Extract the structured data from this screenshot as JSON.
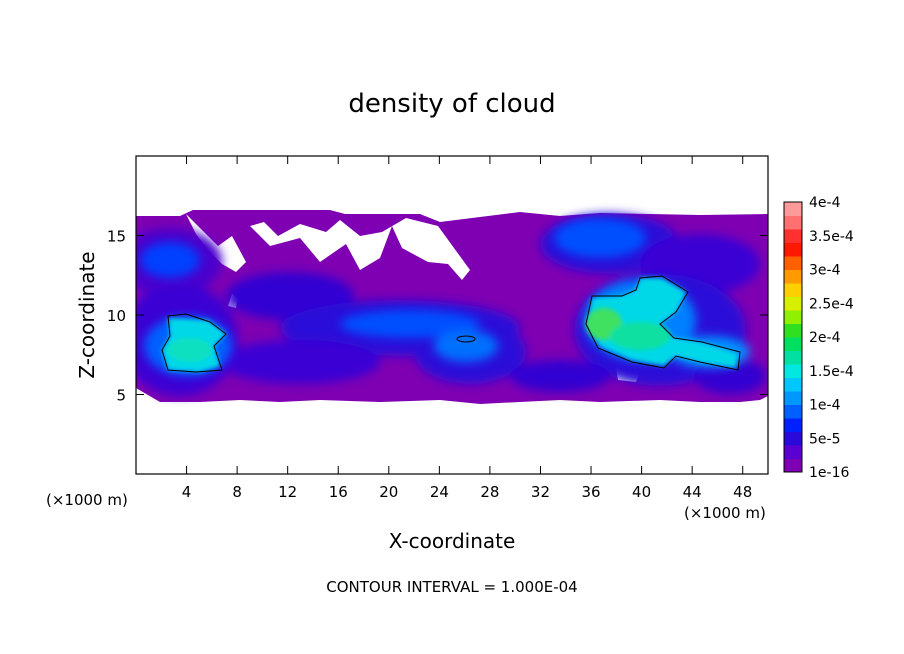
{
  "chart_data": {
    "type": "heatmap",
    "title": "density of cloud",
    "xlabel": "X-coordinate",
    "ylabel": "Z-coordinate",
    "x_unit": "(×1000 m)",
    "y_unit": "(×1000 m)",
    "xlim": [
      0,
      50
    ],
    "ylim": [
      0,
      20
    ],
    "x_ticks": [
      4,
      8,
      12,
      16,
      20,
      24,
      28,
      32,
      36,
      40,
      44,
      48
    ],
    "y_ticks": [
      5,
      10,
      15
    ],
    "colorbar": {
      "levels": [
        "1e-16",
        "5e-5",
        "1e-4",
        "1.5e-4",
        "2e-4",
        "2.5e-4",
        "3e-4",
        "3.5e-4",
        "4e-4"
      ],
      "colors": [
        "#7f00b2",
        "#5a00d0",
        "#2a0ad8",
        "#0020ff",
        "#0060ff",
        "#0098ff",
        "#00c8ff",
        "#00e8e0",
        "#00e0a0",
        "#00e060",
        "#30e020",
        "#90f000",
        "#d8f000",
        "#ffd000",
        "#ff9a00",
        "#ff6000",
        "#ff1800",
        "#ff3030",
        "#ff7070",
        "#ff9a9a"
      ]
    },
    "footer": "CONTOUR INTERVAL = 1.000E-04",
    "contour_level": "1e-4",
    "regions": [
      {
        "level": "1e-16",
        "x": [
          0,
          50
        ],
        "z": [
          4.5,
          16.5
        ]
      },
      {
        "level": "5e-5",
        "x": [
          0.5,
          9
        ],
        "z": [
          5.5,
          14
        ]
      },
      {
        "level": "1e-4",
        "x": [
          1.5,
          7
        ],
        "z": [
          6.5,
          10
        ]
      },
      {
        "level": "1e-4",
        "x": [
          35.5,
          47
        ],
        "z": [
          6.5,
          12
        ]
      },
      {
        "level": "1.5e-4",
        "x": [
          35.5,
          41.5
        ],
        "z": [
          7.5,
          11
        ]
      },
      {
        "level": "5e-5",
        "x": [
          19,
          28
        ],
        "z": [
          5.5,
          11.5
        ]
      }
    ]
  }
}
